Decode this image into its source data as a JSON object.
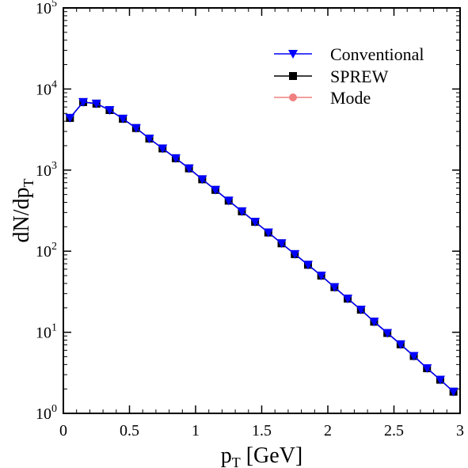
{
  "chart_data": {
    "type": "line",
    "xlabel": "p",
    "xlabel_sub": "T",
    "xlabel_suffix": " [GeV]",
    "ylabel": "dN/dp",
    "ylabel_sub": "T",
    "xlim": [
      0,
      3
    ],
    "ylim": [
      1,
      100000
    ],
    "yscale": "log",
    "x_ticks": [
      0,
      0.5,
      1,
      1.5,
      2,
      2.5,
      3
    ],
    "x_tick_labels": [
      "0",
      "0.5",
      "1",
      "1.5",
      "2",
      "2.5",
      "3"
    ],
    "y_ticks": [
      1,
      10,
      100,
      1000,
      10000,
      100000
    ],
    "y_tick_bases": [
      "10",
      "10",
      "10",
      "10",
      "10",
      "10"
    ],
    "y_tick_exponents": [
      "0",
      "1",
      "2",
      "3",
      "4",
      "5"
    ],
    "grid": false,
    "legend_position": "top-right",
    "x": [
      0.05,
      0.15,
      0.25,
      0.35,
      0.45,
      0.55,
      0.65,
      0.75,
      0.85,
      0.95,
      1.05,
      1.15,
      1.25,
      1.35,
      1.45,
      1.55,
      1.65,
      1.75,
      1.85,
      1.95,
      2.05,
      2.15,
      2.25,
      2.35,
      2.45,
      2.55,
      2.65,
      2.75,
      2.85,
      2.95
    ],
    "series": [
      {
        "name": "Conventional",
        "marker": "triangle-down",
        "color": "#0000ff",
        "values": [
          4400,
          6900,
          6600,
          5500,
          4300,
          3300,
          2450,
          1850,
          1400,
          1050,
          770,
          570,
          420,
          310,
          230,
          170,
          125,
          92,
          68,
          50,
          36,
          26,
          19,
          13.5,
          9.8,
          7.1,
          5.1,
          3.6,
          2.6,
          1.85
        ]
      },
      {
        "name": "SPREW",
        "marker": "square",
        "color": "#000000",
        "values": [
          4400,
          6900,
          6600,
          5500,
          4300,
          3300,
          2450,
          1850,
          1400,
          1050,
          770,
          570,
          420,
          310,
          230,
          170,
          125,
          92,
          68,
          50,
          36,
          26,
          19,
          13.5,
          9.8,
          7.1,
          5.1,
          3.6,
          2.6,
          1.85
        ]
      },
      {
        "name": "Mode",
        "marker": "circle",
        "color": "#f08080",
        "values": [
          4400,
          6900,
          6600,
          5500,
          4300,
          3300,
          2450,
          1850,
          1400,
          1050,
          770,
          570,
          420,
          310,
          230,
          170,
          125,
          92,
          68,
          50,
          36,
          26,
          19,
          13.5,
          9.8,
          7.1,
          5.1,
          3.6,
          2.6,
          1.85
        ]
      }
    ]
  }
}
